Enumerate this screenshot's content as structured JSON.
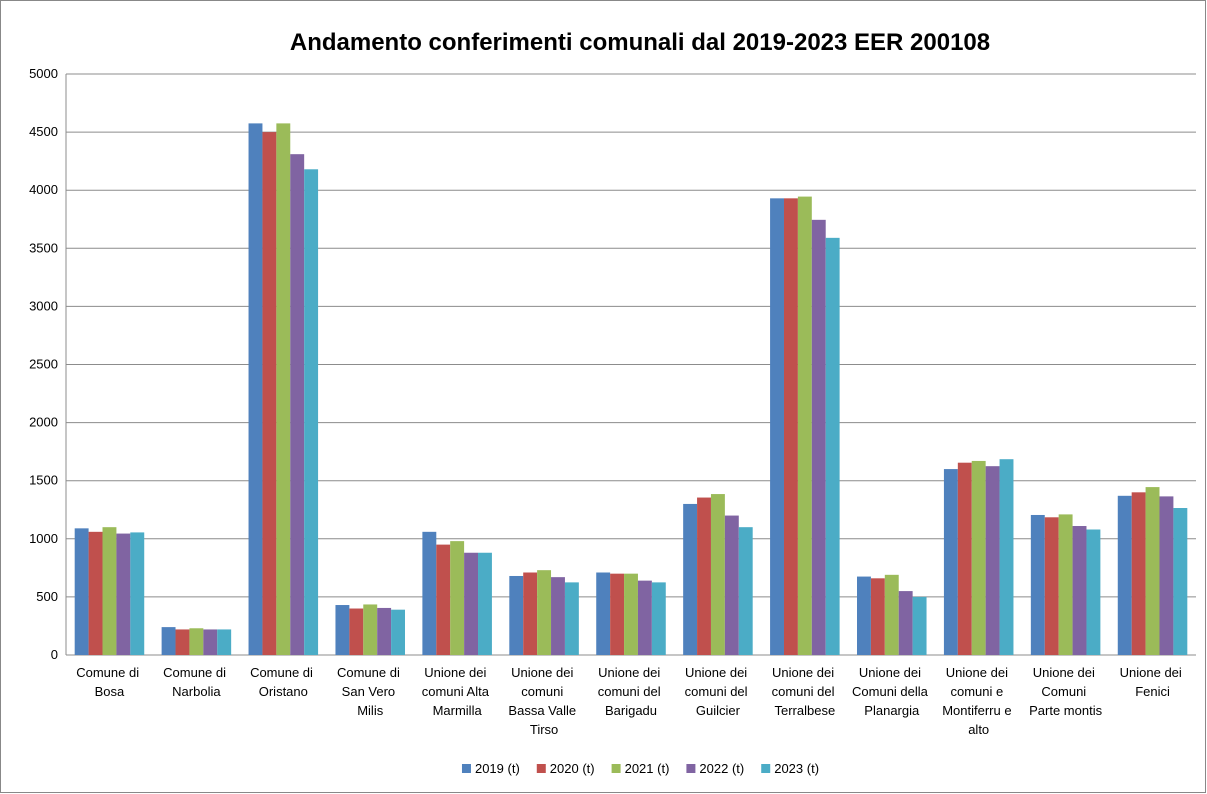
{
  "chart_data": {
    "type": "bar",
    "title": "Andamento conferimenti  comunali dal 2019-2023 EER 200108",
    "categories": [
      "Comune di Bosa",
      "Comune di Narbolia",
      "Comune di Oristano",
      "Comune di San Vero Milis",
      "Unione dei comuni Alta Marmilla",
      "Unione dei comuni Bassa Valle Tirso",
      "Unione dei comuni del Barigadu",
      "Unione dei comuni del Guilcier",
      "Unione dei comuni del Terralbese",
      "Unione dei Comuni della Planargia",
      "Unione dei comuni e Montiferru e alto",
      "Unione dei Comuni Parte montis",
      "Unione dei Fenici"
    ],
    "series": [
      {
        "name": "2019 (t)",
        "color": "#4f81bd",
        "values": [
          1090,
          240,
          4575,
          430,
          1060,
          680,
          710,
          1300,
          3930,
          675,
          1600,
          1205,
          1370
        ]
      },
      {
        "name": "2020 (t)",
        "color": "#c0504d",
        "values": [
          1060,
          220,
          4500,
          400,
          950,
          710,
          700,
          1355,
          3930,
          660,
          1655,
          1185,
          1400
        ]
      },
      {
        "name": "2021 (t)",
        "color": "#9bbb59",
        "values": [
          1100,
          230,
          4575,
          435,
          980,
          730,
          700,
          1385,
          3945,
          690,
          1670,
          1210,
          1445
        ]
      },
      {
        "name": "2022 (t)",
        "color": "#8064a2",
        "values": [
          1045,
          220,
          4310,
          405,
          880,
          670,
          640,
          1200,
          3745,
          550,
          1625,
          1110,
          1365
        ]
      },
      {
        "name": "2023 (t)",
        "color": "#4bacc6",
        "values": [
          1055,
          220,
          4180,
          390,
          880,
          625,
          625,
          1100,
          3590,
          500,
          1685,
          1080,
          1265
        ]
      }
    ],
    "ylim": [
      0,
      5000
    ],
    "yticks": [
      0,
      500,
      1000,
      1500,
      2000,
      2500,
      3000,
      3500,
      4000,
      4500,
      5000
    ],
    "grid": true,
    "legend": "bottom"
  }
}
